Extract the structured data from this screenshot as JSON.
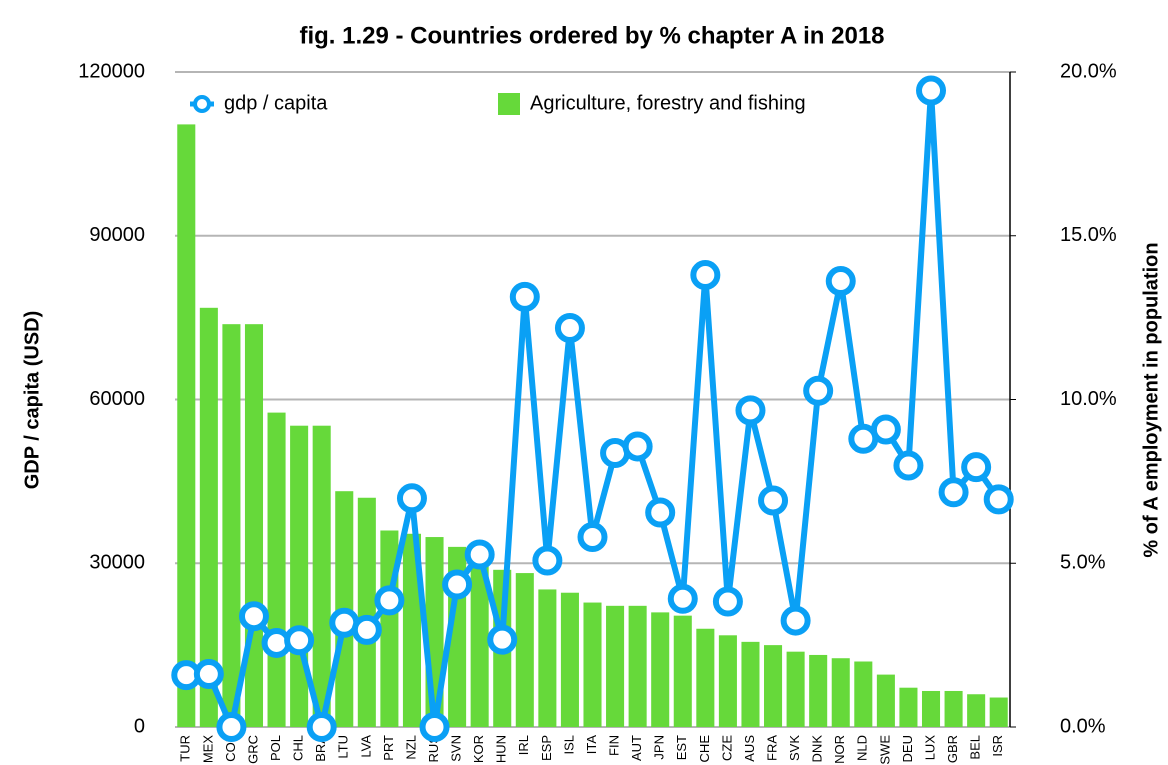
{
  "chart_data": {
    "type": "bar_line",
    "title": "fig. 1.29 - Countries ordered by % chapter A in 2018",
    "y_label": "GDP / capita (USD)",
    "y2_label": "% of A employment in population",
    "categories": [
      "TUR",
      "MEX",
      "COL",
      "GRC",
      "POL",
      "CHL",
      "BRA",
      "LTU",
      "LVA",
      "PRT",
      "NZL",
      "RUS",
      "SVN",
      "KOR",
      "HUN",
      "IRL",
      "ESP",
      "ISL",
      "ITA",
      "FIN",
      "AUT",
      "JPN",
      "EST",
      "CHE",
      "CZE",
      "AUS",
      "FRA",
      "SVK",
      "DNK",
      "NOR",
      "NLD",
      "SWE",
      "DEU",
      "LUX",
      "GBR",
      "BEL",
      "ISR"
    ],
    "series": [
      {
        "name": "gdp / capita",
        "type": "line",
        "color": "#0aa0f5",
        "axis": "y",
        "values": [
          9500,
          9700,
          0,
          20300,
          15400,
          15900,
          0,
          19100,
          17800,
          23200,
          41900,
          0,
          26100,
          31600,
          16000,
          78800,
          30500,
          73100,
          34800,
          50200,
          51400,
          39300,
          23500,
          82800,
          23000,
          58000,
          41500,
          19500,
          61600,
          81700,
          52800,
          54500,
          47900,
          116600,
          43000,
          47600,
          41700
        ]
      },
      {
        "name": "Agriculture, forestry and fishing",
        "type": "bar",
        "color": "#66d93a",
        "axis": "y2",
        "values": [
          18.4,
          12.8,
          12.3,
          12.3,
          9.6,
          9.2,
          9.2,
          7.2,
          7.0,
          6.0,
          5.9,
          5.8,
          5.5,
          5.3,
          4.8,
          4.7,
          4.2,
          4.1,
          3.8,
          3.7,
          3.7,
          3.5,
          3.4,
          3.0,
          2.8,
          2.6,
          2.5,
          2.3,
          2.2,
          2.1,
          2.0,
          1.6,
          1.2,
          1.1,
          1.1,
          1.0,
          0.9
        ]
      }
    ],
    "ylim": [
      0,
      120000
    ],
    "yticks": [
      0,
      30000,
      60000,
      90000,
      120000
    ],
    "y2lim": [
      0,
      20
    ],
    "y2ticks": [
      {
        "value": 0,
        "label": "0.0%"
      },
      {
        "value": 5,
        "label": "5.0%"
      },
      {
        "value": 10,
        "label": "10.0%"
      },
      {
        "value": 15,
        "label": "15.0%"
      },
      {
        "value": 20,
        "label": "20.0%"
      }
    ],
    "grid": true,
    "legend": "top"
  }
}
